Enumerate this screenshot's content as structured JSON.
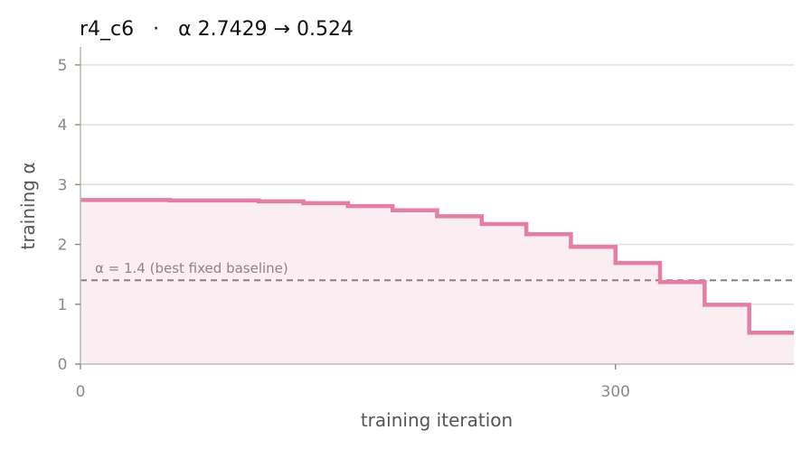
{
  "chart_data": {
    "type": "line",
    "title": "r4_c6   ·   α 2.7429 → 0.524",
    "xlabel": "training iteration",
    "ylabel": "training α",
    "xlim": [
      0,
      400
    ],
    "ylim": [
      0,
      5.3
    ],
    "x_ticks": [
      0,
      300
    ],
    "y_ticks": [
      0,
      1,
      2,
      3,
      4,
      5
    ],
    "grid": "horizontal",
    "step": true,
    "fill_under": true,
    "series": [
      {
        "x": [
          0,
          50,
          100,
          125,
          150,
          175,
          200,
          225,
          250,
          275,
          300,
          325,
          350,
          375,
          400
        ],
        "y": [
          2.7429,
          2.735,
          2.72,
          2.69,
          2.64,
          2.57,
          2.47,
          2.34,
          2.17,
          1.96,
          1.69,
          1.37,
          0.99,
          0.524,
          0.524
        ],
        "color": "#e57ea7"
      }
    ],
    "reference_line": {
      "y": 1.4,
      "label": "α = 1.4 (best fixed baseline)",
      "style": "dashed",
      "color": "#8a7f82"
    }
  }
}
